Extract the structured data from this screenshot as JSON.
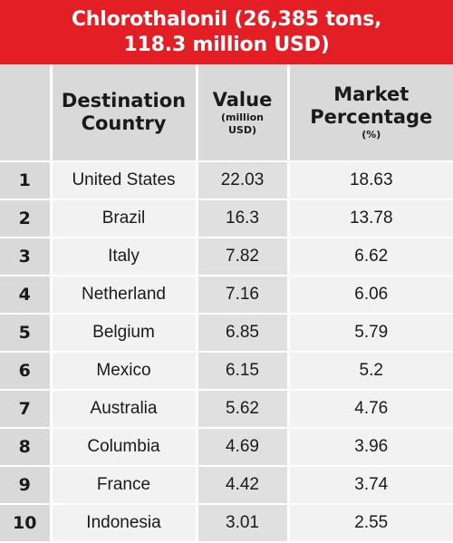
{
  "title": {
    "line1": "Chlorothalonil (26,385 tons,",
    "line2": "118.3 million USD)"
  },
  "headers": {
    "country": [
      "Destination",
      "Country"
    ],
    "value": [
      "Value",
      "(million",
      "USD)"
    ],
    "percentage": [
      "Market",
      "Percentage",
      "(%)"
    ]
  },
  "rows": [
    {
      "rank": "1",
      "country": "United States",
      "value": "22.03",
      "percentage": "18.63"
    },
    {
      "rank": "2",
      "country": "Brazil",
      "value": "16.3",
      "percentage": "13.78"
    },
    {
      "rank": "3",
      "country": "Italy",
      "value": "7.82",
      "percentage": "6.62"
    },
    {
      "rank": "4",
      "country": "Netherland",
      "value": "7.16",
      "percentage": "6.06"
    },
    {
      "rank": "5",
      "country": "Belgium",
      "value": "6.85",
      "percentage": "5.79"
    },
    {
      "rank": "6",
      "country": "Mexico",
      "value": "6.15",
      "percentage": "5.2"
    },
    {
      "rank": "7",
      "country": "Australia",
      "value": "5.62",
      "percentage": "4.76"
    },
    {
      "rank": "8",
      "country": "Columbia",
      "value": "4.69",
      "percentage": "3.96"
    },
    {
      "rank": "9",
      "country": "France",
      "value": "4.42",
      "percentage": "3.74"
    },
    {
      "rank": "10",
      "country": "Indonesia",
      "value": "3.01",
      "percentage": "2.55"
    }
  ],
  "colors": {
    "banner": "#e31e24",
    "header_cell": "#d9d9d9",
    "cell_light": "#f2f2f2",
    "cell_mid": "#e0e0e0"
  }
}
